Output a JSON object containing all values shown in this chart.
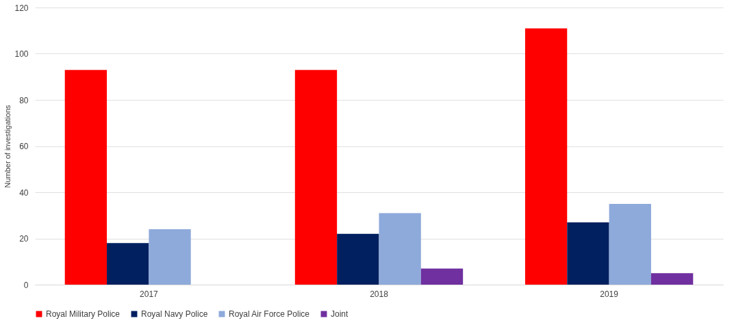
{
  "chart_data": {
    "type": "bar",
    "ylabel": "Number of investigations",
    "categories": [
      "2017",
      "2018",
      "2019"
    ],
    "series": [
      {
        "name": "Royal Military Police",
        "color": "#ff0000",
        "values": [
          93,
          93,
          111
        ]
      },
      {
        "name": "Royal Navy Police",
        "color": "#002060",
        "values": [
          18,
          22,
          27
        ]
      },
      {
        "name": "Royal Air Force Police",
        "color": "#8eaadb",
        "values": [
          24,
          31,
          35
        ]
      },
      {
        "name": "Joint",
        "color": "#7030a0",
        "values": [
          null,
          7,
          5
        ]
      }
    ],
    "ylim": [
      0,
      120
    ],
    "yticks": [
      0,
      20,
      40,
      60,
      80,
      100,
      120
    ],
    "grid": "y",
    "legend": "bottom"
  }
}
